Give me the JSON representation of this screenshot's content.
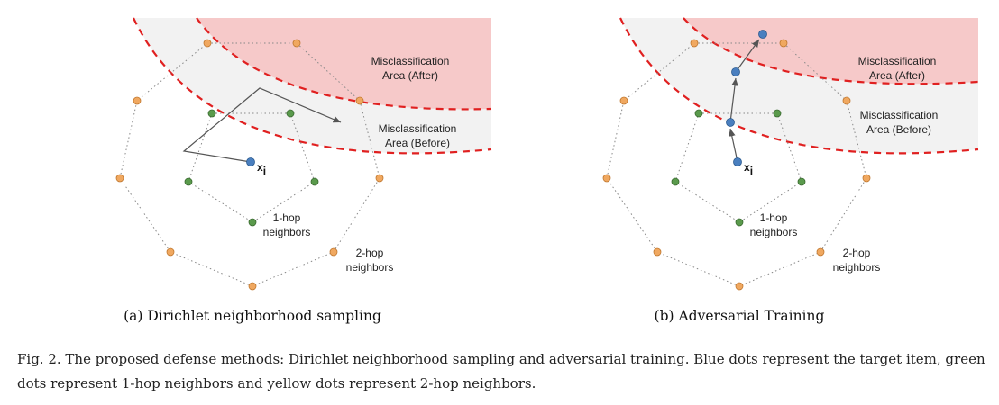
{
  "panels": [
    {
      "caption": "(a) Dirichlet neighborhood sampling",
      "area_after": [
        "Misclassification",
        "Area (After)"
      ],
      "area_before": [
        "Misclassification",
        "Area (Before)"
      ],
      "one_hop": [
        "1-hop",
        "neighbors"
      ],
      "two_hop": [
        "2-hop",
        "neighbors"
      ],
      "target_label": "x",
      "target_subscript": "i"
    },
    {
      "caption": "(b) Adversarial Training",
      "area_after": [
        "Misclassification",
        "Area (After)"
      ],
      "area_before": [
        "Misclassification",
        "Area (Before)"
      ],
      "one_hop": [
        "1-hop",
        "neighbors"
      ],
      "two_hop": [
        "2-hop",
        "neighbors"
      ],
      "target_label": "x",
      "target_subscript": "i"
    }
  ],
  "figure_caption": "Fig. 2.  The proposed defense methods: Dirichlet neighborhood sampling and adversarial training. Blue dots represent the target item, green dots represent 1-hop neighbors and yellow dots represent 2-hop neighbors.",
  "colors": {
    "target_dot": "#4a7fbf",
    "one_hop_dot": "#5a9a4c",
    "two_hop_dot": "#f0a860",
    "after_area": "#f6c9c9",
    "before_area": "#f2f2f2",
    "boundary": "#e02020"
  }
}
